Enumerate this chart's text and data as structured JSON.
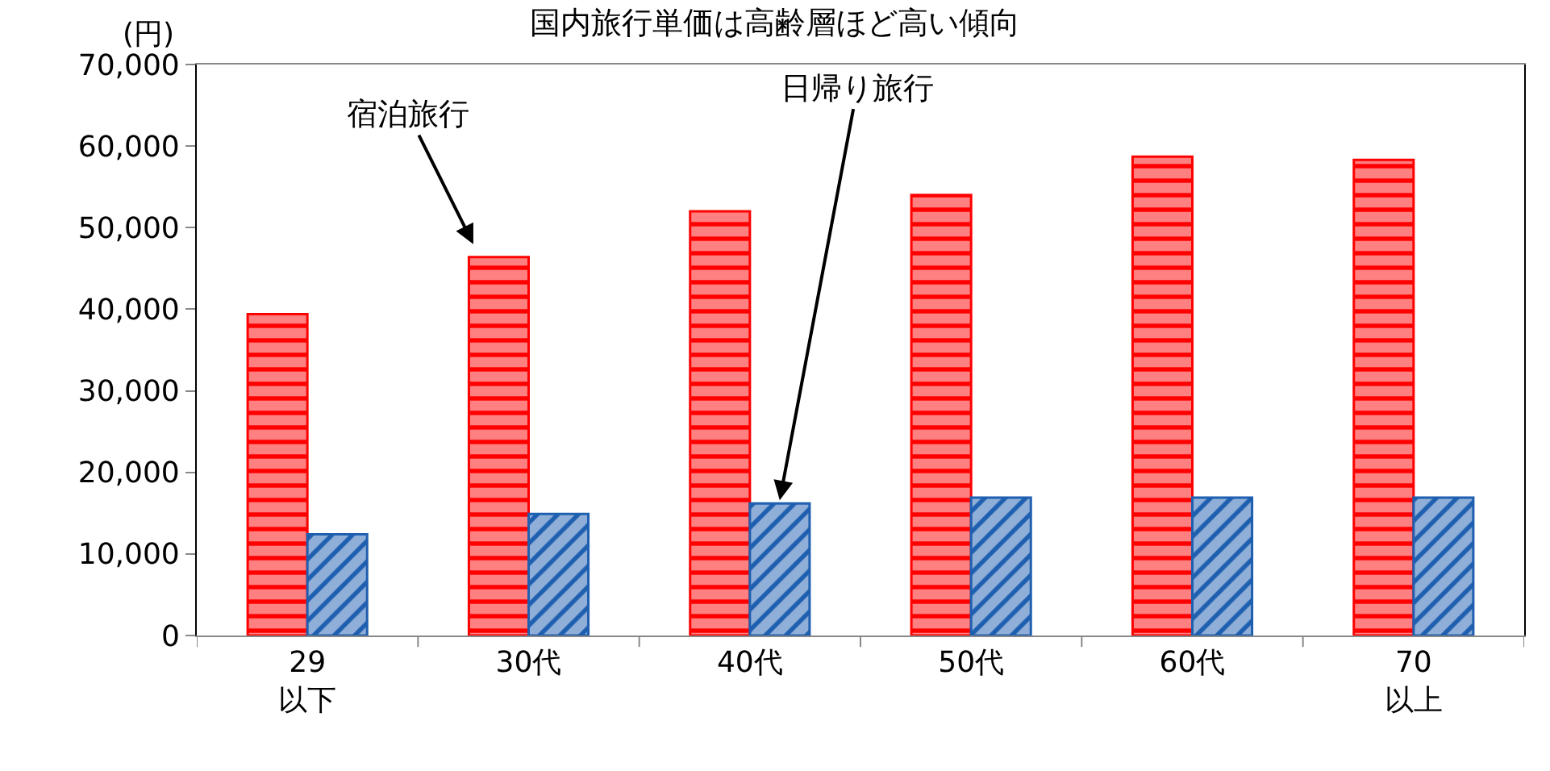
{
  "chart_data": {
    "type": "bar",
    "title": "国内旅行単価は高齢層ほど高い傾向",
    "ylabel": "(円)",
    "categories": [
      "29\n以下",
      "30代",
      "40代",
      "50代",
      "60代",
      "70\n以上"
    ],
    "series": [
      {
        "name": "宿泊旅行",
        "color": "#ff0000",
        "values": [
          39400,
          46400,
          52000,
          54000,
          58700,
          58300
        ]
      },
      {
        "name": "日帰り旅行",
        "color": "#1f5fb0",
        "values": [
          12400,
          14900,
          16200,
          16900,
          16900,
          16900
        ]
      }
    ],
    "ylim": [
      0,
      70000
    ],
    "yticks": [
      {
        "value": 0,
        "label": "0"
      },
      {
        "value": 10000,
        "label": "10,000"
      },
      {
        "value": 20000,
        "label": "20,000"
      },
      {
        "value": 30000,
        "label": "30,000"
      },
      {
        "value": 40000,
        "label": "40,000"
      },
      {
        "value": 50000,
        "label": "50,000"
      },
      {
        "value": 60000,
        "label": "60,000"
      },
      {
        "value": 70000,
        "label": "70,000"
      }
    ],
    "legend": false
  }
}
